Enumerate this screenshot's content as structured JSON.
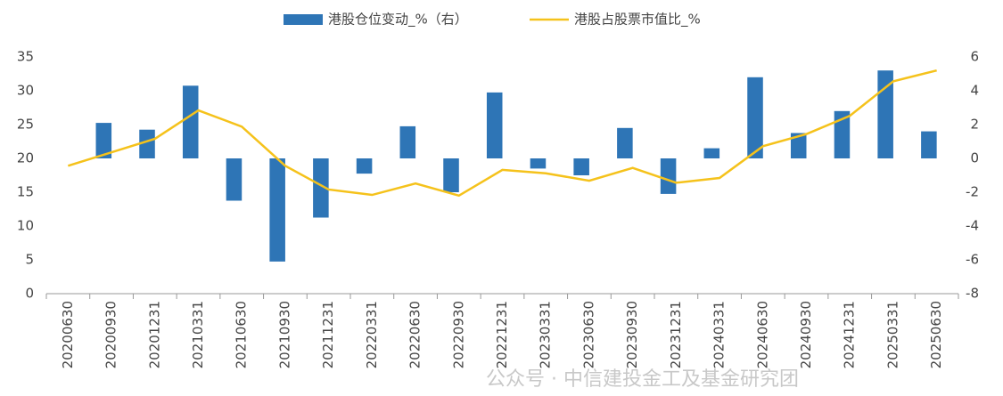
{
  "chart_data": {
    "type": "bar_line",
    "categories": [
      "20200630",
      "20200930",
      "20201231",
      "20210331",
      "20210630",
      "20210930",
      "20211231",
      "20220331",
      "20220630",
      "20220930",
      "20221231",
      "20230331",
      "20230630",
      "20230930",
      "20231231",
      "20240331",
      "20240630",
      "20240930",
      "20241231",
      "20250331",
      "20250630"
    ],
    "series": [
      {
        "name": "港股仓位变动_%（右）",
        "type": "bar",
        "axis": "y2",
        "color": "#2e75b6",
        "values": [
          null,
          2.1,
          1.7,
          4.3,
          -2.5,
          -6.1,
          -3.5,
          -0.9,
          1.9,
          -2.0,
          3.9,
          -0.6,
          -1.0,
          1.8,
          -2.1,
          0.6,
          4.8,
          1.5,
          2.8,
          5.2,
          1.6
        ]
      },
      {
        "name": "港股占股票市值比_%",
        "type": "line",
        "axis": "y",
        "color": "#f5c21b",
        "values": [
          18.9,
          20.9,
          22.9,
          27.1,
          24.7,
          18.9,
          15.4,
          14.6,
          16.3,
          14.5,
          18.3,
          17.8,
          16.7,
          18.6,
          16.4,
          17.1,
          21.8,
          23.6,
          26.3,
          31.4,
          33.0
        ]
      }
    ],
    "ylim": [
      0,
      35
    ],
    "yticks": [
      0,
      5,
      10,
      15,
      20,
      25,
      30,
      35
    ],
    "y2lim": [
      -8,
      6
    ],
    "y2ticks": [
      -8,
      -6,
      -4,
      -2,
      0,
      2,
      4,
      6
    ],
    "legend": "top",
    "watermark": "公众号 · 中信建投金工及基金研究团"
  }
}
